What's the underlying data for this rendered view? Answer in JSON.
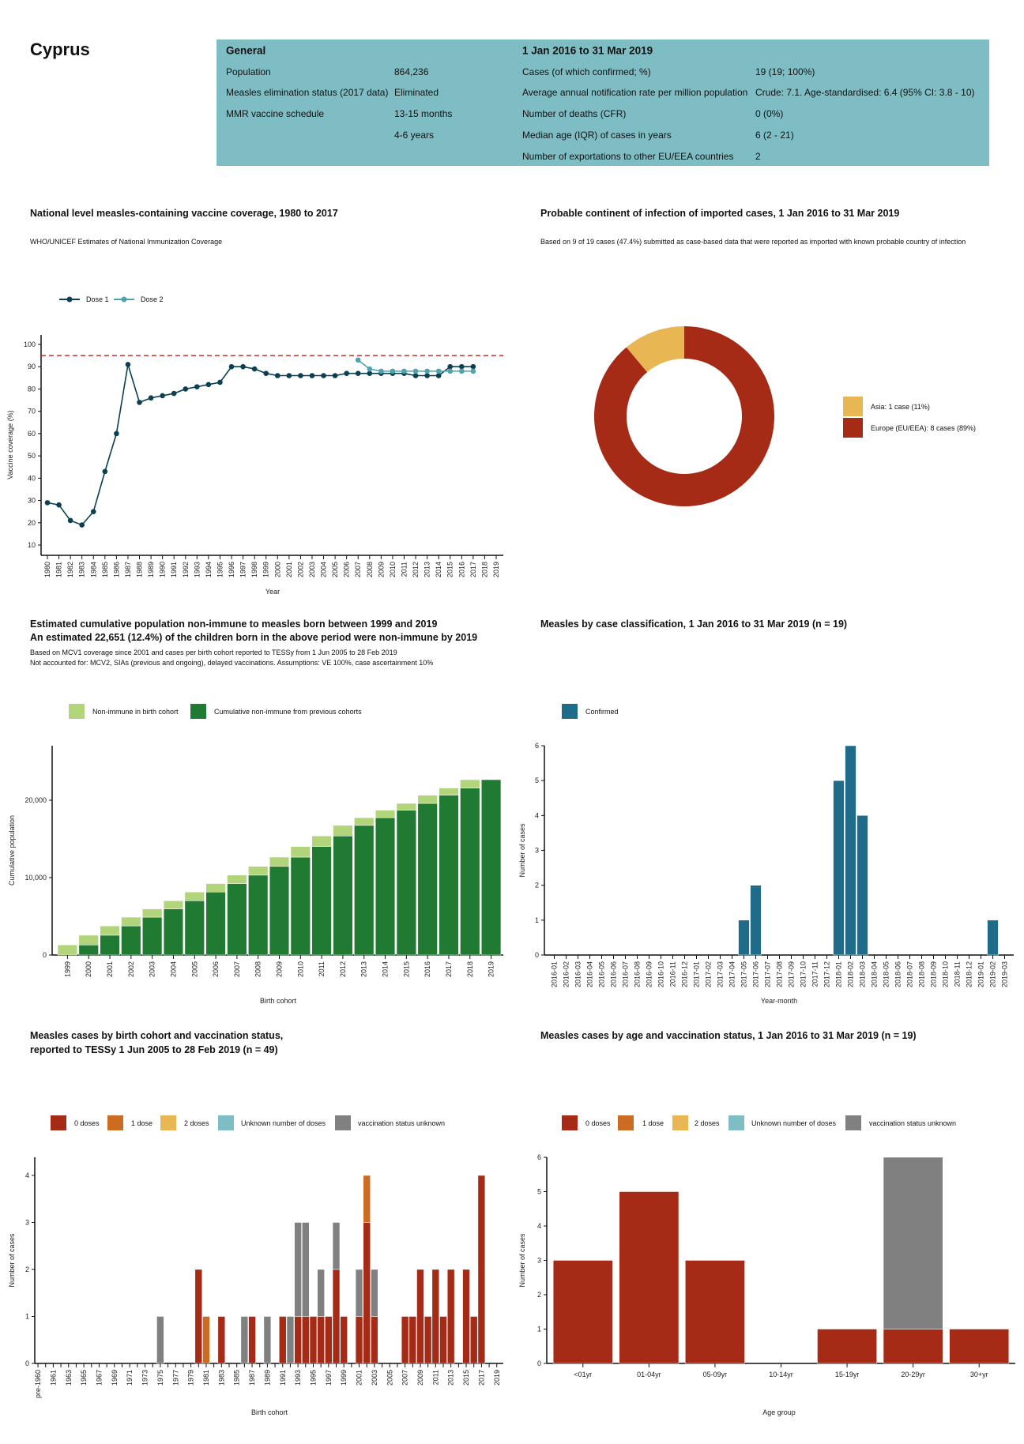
{
  "country": "Cyprus",
  "info": {
    "general": {
      "header": "General",
      "rows": [
        {
          "label": "Population",
          "value": "864,236"
        },
        {
          "label": "Measles elimination status (2017 data)",
          "value": "Eliminated"
        },
        {
          "label": "MMR vaccine schedule",
          "value": "13-15 months"
        },
        {
          "label": "",
          "value": "4-6 years"
        }
      ]
    },
    "period": {
      "header": "1 Jan 2016 to 31 Mar 2019",
      "rows": [
        {
          "label": "Cases (of which confirmed; %)",
          "value": "19 (19; 100%)"
        },
        {
          "label": "Average annual notification rate per million population",
          "value": "Crude: 7.1. Age-standardised: 6.4 (95% CI: 3.8 - 10)"
        },
        {
          "label": "Number of deaths (CFR)",
          "value": "0 (0%)"
        },
        {
          "label": "Median age (IQR) of cases in years",
          "value": "6 (2 - 21)"
        },
        {
          "label": "Number of exportations to other EU/EEA countries",
          "value": "2"
        }
      ]
    },
    "box_color": "#7fbdc4"
  },
  "chart_data": [
    {
      "id": "coverage",
      "type": "line",
      "title": "National level measles-containing vaccine coverage, 1980 to 2017",
      "subtitle": "WHO/UNICEF Estimates of National Immunization Coverage",
      "xlabel": "Year",
      "ylabel": "Vaccine coverage (%)",
      "x_ticks": [
        "1980",
        "1981",
        "1982",
        "1983",
        "1984",
        "1985",
        "1986",
        "1987",
        "1988",
        "1989",
        "1990",
        "1991",
        "1992",
        "1993",
        "1994",
        "1995",
        "1996",
        "1997",
        "1998",
        "1999",
        "2000",
        "2001",
        "2002",
        "2003",
        "2004",
        "2005",
        "2006",
        "2007",
        "2008",
        "2009",
        "2010",
        "2011",
        "2012",
        "2013",
        "2014",
        "2015",
        "2016",
        "2017",
        "2018",
        "2019"
      ],
      "y_ticks": [
        10,
        20,
        30,
        40,
        50,
        60,
        70,
        80,
        90,
        100
      ],
      "xlim": [
        1980,
        2019
      ],
      "ylim": [
        5,
        104
      ],
      "target_line": 95,
      "target_color": "#c0392b",
      "legend": "top-left",
      "grid": false,
      "series": [
        {
          "name": "Dose 1",
          "color": "#0b3f52",
          "x": [
            1980,
            1981,
            1982,
            1983,
            1984,
            1985,
            1986,
            1987,
            1988,
            1989,
            1990,
            1991,
            1992,
            1993,
            1994,
            1995,
            1996,
            1997,
            1998,
            1999,
            2000,
            2001,
            2002,
            2003,
            2004,
            2005,
            2006,
            2007,
            2008,
            2009,
            2010,
            2011,
            2012,
            2013,
            2014,
            2015,
            2016,
            2017
          ],
          "y": [
            29,
            28,
            21,
            19,
            25,
            43,
            60,
            91,
            74,
            76,
            77,
            78,
            80,
            81,
            82,
            83,
            90,
            90,
            89,
            87,
            86,
            86,
            86,
            86,
            86,
            86,
            87,
            87,
            87,
            87,
            87,
            87,
            86,
            86,
            86,
            90,
            90,
            90
          ]
        },
        {
          "name": "Dose 2",
          "color": "#4fa3ad",
          "x": [
            2007,
            2008,
            2009,
            2010,
            2011,
            2012,
            2013,
            2014,
            2015,
            2016,
            2017
          ],
          "y": [
            93,
            89,
            88,
            88,
            88,
            88,
            88,
            88,
            88,
            88,
            88
          ]
        }
      ]
    },
    {
      "id": "continent",
      "type": "pie",
      "donut": true,
      "title": "Probable continent of infection of imported cases, 1 Jan 2016 to 31 Mar 2019",
      "subtitle": "Based on 9 of 19 cases (47.4%) submitted as case-based data that were reported as imported with known probable country of infection",
      "legend": "right",
      "slices": [
        {
          "name": "Asia: 1 case (11%)",
          "value": 1,
          "color": "#e8b753"
        },
        {
          "name": "Europe (EU/EEA): 8 cases (89%)",
          "value": 8,
          "color": "#a62b17"
        }
      ]
    },
    {
      "id": "nonimmune",
      "type": "bar",
      "stacked": true,
      "title": "Estimated cumulative population non-immune to measles born between 1999 and 2019",
      "title2": "An estimated 22,651 (12.4%) of the children born in the above period were non-immune by 2019",
      "subtitle": "Based on MCV1 coverage since 2001 and cases per birth cohort reported to TESSy from 1 Jun 2005 to 28 Feb 2019",
      "subtitle2": "Not accounted for: MCV2, SIAs (previous and ongoing), delayed vaccinations. Assumptions: VE 100%, case ascertainment 10%",
      "xlabel": "Birth cohort",
      "ylabel": "Cumulative population",
      "y_ticks": [
        {
          "v": 0,
          "label": "0"
        },
        {
          "v": 10000,
          "label": "10,000"
        },
        {
          "v": 20000,
          "label": "20,000"
        }
      ],
      "ylim": [
        0,
        27000
      ],
      "legend": "top-left",
      "categories": [
        "1999",
        "2000",
        "2001",
        "2002",
        "2003",
        "2004",
        "2005",
        "2006",
        "2007",
        "2008",
        "2009",
        "2010",
        "2011",
        "2012",
        "2013",
        "2014",
        "2015",
        "2016",
        "2017",
        "2018",
        "2019"
      ],
      "series": [
        {
          "name": "Cumulative non-immune from previous cohorts",
          "color": "#217a32",
          "values": [
            0,
            1300,
            2560,
            3760,
            4890,
            5950,
            7010,
            8140,
            9230,
            10320,
            11450,
            12650,
            14020,
            15380,
            16750,
            17740,
            18700,
            19590,
            20650,
            21570,
            22651
          ]
        },
        {
          "name": "Non-immune in birth cohort",
          "color": "#b2d47a",
          "values": [
            1300,
            1260,
            1200,
            1130,
            1060,
            1060,
            1130,
            1090,
            1090,
            1130,
            1200,
            1370,
            1360,
            1370,
            990,
            960,
            890,
            1060,
            920,
            1081,
            0
          ]
        }
      ],
      "legend_order": [
        1,
        0
      ]
    },
    {
      "id": "classification",
      "type": "bar",
      "title": "Measles by case classification, 1 Jan 2016 to 31 Mar 2019 (n = 19)",
      "xlabel": "Year-month",
      "ylabel": "Number of cases",
      "y_ticks": [
        0,
        1,
        2,
        3,
        4,
        5,
        6
      ],
      "ylim": [
        0,
        6
      ],
      "legend": "top-left",
      "categories": [
        "2016-01",
        "2016-02",
        "2016-03",
        "2016-04",
        "2016-05",
        "2016-06",
        "2016-07",
        "2016-08",
        "2016-09",
        "2016-10",
        "2016-11",
        "2016-12",
        "2017-01",
        "2017-02",
        "2017-03",
        "2017-04",
        "2017-05",
        "2017-06",
        "2017-07",
        "2017-08",
        "2017-09",
        "2017-10",
        "2017-11",
        "2017-12",
        "2018-01",
        "2018-02",
        "2018-03",
        "2018-04",
        "2018-05",
        "2018-06",
        "2018-07",
        "2018-08",
        "2018-09",
        "2018-10",
        "2018-11",
        "2018-12",
        "2019-01",
        "2019-02",
        "2019-03"
      ],
      "series": [
        {
          "name": "Confirmed",
          "color": "#1f6b8a",
          "values": [
            0,
            0,
            0,
            0,
            0,
            0,
            0,
            0,
            0,
            0,
            0,
            0,
            0,
            0,
            0,
            0,
            1,
            2,
            0,
            0,
            0,
            0,
            0,
            0,
            5,
            6,
            4,
            0,
            0,
            0,
            0,
            0,
            0,
            0,
            0,
            0,
            0,
            1,
            0
          ]
        }
      ]
    },
    {
      "id": "cohort_vacc",
      "type": "bar",
      "stacked": true,
      "title": "Measles cases by birth cohort and vaccination status,",
      "title2": "reported to TESSy 1 Jun 2005 to 28 Feb 2019 (n = 49)",
      "xlabel": "Birth cohort",
      "ylabel": "Number of cases",
      "y_ticks": [
        0,
        1,
        2,
        3,
        4
      ],
      "ylim": [
        0,
        4.4
      ],
      "legend": "top-left",
      "categories": [
        "pre-1960",
        "1960",
        "1961",
        "1962",
        "1963",
        "1964",
        "1965",
        "1966",
        "1967",
        "1968",
        "1969",
        "1970",
        "1971",
        "1972",
        "1973",
        "1974",
        "1975",
        "1976",
        "1977",
        "1978",
        "1979",
        "1980",
        "1981",
        "1982",
        "1983",
        "1984",
        "1985",
        "1986",
        "1987",
        "1988",
        "1989",
        "1990",
        "1991",
        "1992",
        "1993",
        "1994",
        "1995",
        "1996",
        "1997",
        "1998",
        "1999",
        "2000",
        "2001",
        "2002",
        "2003",
        "2004",
        "2005",
        "2006",
        "2007",
        "2008",
        "2009",
        "2010",
        "2011",
        "2012",
        "2013",
        "2014",
        "2015",
        "2016",
        "2017",
        "2018",
        "2019"
      ],
      "series": [
        {
          "name": "0 doses",
          "color": "#a62b17",
          "values": {
            "1980": 2,
            "1983": 1,
            "1987": 1,
            "1991": 1,
            "1993": 1,
            "1994": 1,
            "1995": 1,
            "1996": 1,
            "1997": 1,
            "1998": 2,
            "1999": 1,
            "2001": 1,
            "2002": 3,
            "2003": 1,
            "2007": 1,
            "2008": 1,
            "2009": 2,
            "2010": 1,
            "2011": 2,
            "2012": 1,
            "2013": 2,
            "2015": 2,
            "2016": 1,
            "2017": 4
          }
        },
        {
          "name": "1 dose",
          "color": "#cc6b22",
          "values": {
            "1981": 1,
            "2002": 1
          }
        },
        {
          "name": "2 doses",
          "color": "#e8b753",
          "values": {}
        },
        {
          "name": "Unknown number of doses",
          "color": "#7fbdc4",
          "values": {}
        },
        {
          "name": "vaccination status unknown",
          "color": "#808080",
          "values": {
            "1975": 1,
            "1986": 1,
            "1989": 1,
            "1992": 1,
            "1993": 2,
            "1994": 2,
            "1996": 1,
            "1998": 1,
            "2001": 1,
            "2003": 1
          }
        }
      ]
    },
    {
      "id": "age_vacc",
      "type": "bar",
      "stacked": true,
      "title": "Measles cases by age and vaccination status, 1 Jan 2016 to 31 Mar 2019 (n = 19)",
      "xlabel": "Age group",
      "ylabel": "Number of cases",
      "y_ticks": [
        0,
        1,
        2,
        3,
        4,
        5,
        6
      ],
      "ylim": [
        0,
        6
      ],
      "legend": "top-left",
      "categories": [
        "<01yr",
        "01-04yr",
        "05-09yr",
        "10-14yr",
        "15-19yr",
        "20-29yr",
        "30+yr"
      ],
      "series": [
        {
          "name": "0 doses",
          "color": "#a62b17",
          "values": [
            3,
            5,
            3,
            0,
            1,
            1,
            1
          ]
        },
        {
          "name": "1 dose",
          "color": "#cc6b22",
          "values": [
            0,
            0,
            0,
            0,
            0,
            0,
            0
          ]
        },
        {
          "name": "2 doses",
          "color": "#e8b753",
          "values": [
            0,
            0,
            0,
            0,
            0,
            0,
            0
          ]
        },
        {
          "name": "Unknown number of doses",
          "color": "#7fbdc4",
          "values": [
            0,
            0,
            0,
            0,
            0,
            0,
            0
          ]
        },
        {
          "name": "vaccination status unknown",
          "color": "#808080",
          "values": [
            0,
            0,
            0,
            0,
            0,
            5,
            0
          ]
        }
      ]
    }
  ]
}
